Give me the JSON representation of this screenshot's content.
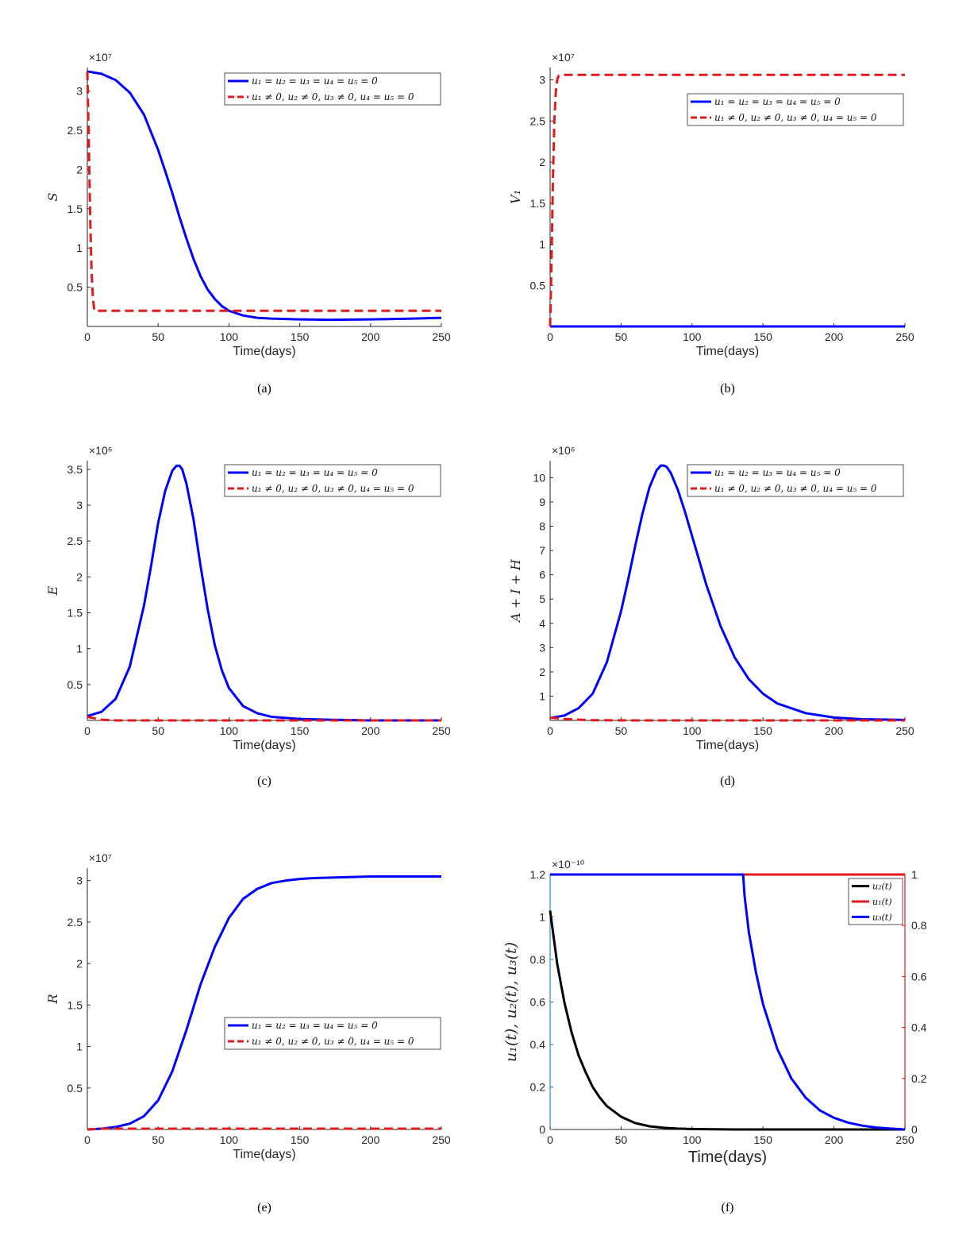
{
  "colors": {
    "blue": "#0000ff",
    "red": "#e31a1c",
    "black": "#000000",
    "left_axis": "#0072bd",
    "right_axis": "#d95319"
  },
  "chart_data": [
    {
      "id": "a",
      "type": "line",
      "panel_label": "(a)",
      "xlabel": "Time(days)",
      "ylabel": "S",
      "exponent_label": "×10⁷",
      "xlim": [
        0,
        250
      ],
      "ylim": [
        0.0,
        3.3
      ],
      "x_ticks": [
        0,
        50,
        100,
        150,
        200,
        250
      ],
      "x_tick_labels": [
        "0",
        "50",
        "100",
        "150",
        "200",
        "250"
      ],
      "y_ticks": [
        0.5,
        1,
        1.5,
        2,
        2.5,
        3
      ],
      "y_tick_labels": [
        "0.5",
        "1",
        "1.5",
        "2",
        "2.5",
        "3"
      ],
      "legend": {
        "position": "top-right",
        "entries": [
          "u₁ = u₂ = u₃ = u₄ = u₅ = 0",
          "u₁ ≠ 0,  u₂ ≠ 0,  u₃ ≠ 0,  u₄ = u₅ = 0"
        ]
      },
      "series": [
        {
          "color": "blue",
          "dash": false,
          "x": [
            0,
            10,
            20,
            30,
            40,
            50,
            55,
            60,
            65,
            70,
            75,
            80,
            85,
            90,
            95,
            100,
            110,
            120,
            130,
            150,
            170,
            200,
            230,
            250
          ],
          "y": [
            3.25,
            3.22,
            3.14,
            2.98,
            2.7,
            2.25,
            1.98,
            1.7,
            1.4,
            1.12,
            0.86,
            0.64,
            0.47,
            0.35,
            0.26,
            0.2,
            0.14,
            0.11,
            0.1,
            0.09,
            0.085,
            0.09,
            0.1,
            0.11
          ]
        },
        {
          "color": "red",
          "dash": true,
          "x": [
            0,
            1,
            2,
            3,
            4,
            5,
            8,
            20,
            100,
            250
          ],
          "y": [
            3.25,
            2.4,
            1.4,
            0.7,
            0.35,
            0.2,
            0.2,
            0.2,
            0.2,
            0.2
          ]
        }
      ]
    },
    {
      "id": "b",
      "type": "line",
      "panel_label": "(b)",
      "xlabel": "Time(days)",
      "ylabel": "V₁",
      "exponent_label": "×10⁷",
      "xlim": [
        0,
        250
      ],
      "ylim": [
        0.0,
        3.15
      ],
      "x_ticks": [
        0,
        50,
        100,
        150,
        200,
        250
      ],
      "x_tick_labels": [
        "0",
        "50",
        "100",
        "150",
        "200",
        "250"
      ],
      "y_ticks": [
        0.5,
        1,
        1.5,
        2,
        2.5,
        3
      ],
      "y_tick_labels": [
        "0.5",
        "1",
        "1.5",
        "2",
        "2.5",
        "3"
      ],
      "legend": {
        "position": "top-right",
        "entries": [
          "u₁ = u₂ = u₃ = u₄ = u₅ = 0",
          "u₁ ≠ 0,  u₂ ≠ 0,  u₃ ≠ 0,  u₄ = u₅ = 0"
        ]
      },
      "series": [
        {
          "color": "blue",
          "dash": false,
          "x": [
            0,
            250
          ],
          "y": [
            0.0,
            0.0
          ]
        },
        {
          "color": "red",
          "dash": true,
          "x": [
            0,
            1,
            2,
            3,
            4,
            5,
            6,
            10,
            50,
            250
          ],
          "y": [
            0.0,
            0.8,
            1.8,
            2.5,
            2.85,
            3.0,
            3.05,
            3.06,
            3.06,
            3.06
          ]
        }
      ]
    },
    {
      "id": "c",
      "type": "line",
      "panel_label": "(c)",
      "xlabel": "Time(days)",
      "ylabel": "E",
      "exponent_label": "×10⁶",
      "xlim": [
        0,
        250
      ],
      "ylim": [
        0.0,
        3.62
      ],
      "x_ticks": [
        0,
        50,
        100,
        150,
        200,
        250
      ],
      "x_tick_labels": [
        "0",
        "50",
        "100",
        "150",
        "200",
        "250"
      ],
      "y_ticks": [
        0.5,
        1,
        1.5,
        2,
        2.5,
        3,
        3.5
      ],
      "y_tick_labels": [
        "0.5",
        "1",
        "1.5",
        "2",
        "2.5",
        "3",
        "3.5"
      ],
      "legend": {
        "position": "top-right",
        "entries": [
          "u₁ = u₂ = u₃ = u₄ = u₅ = 0",
          "u₁ ≠ 0,  u₂ ≠ 0,  u₃ ≠ 0,  u₄ = u₅ = 0"
        ]
      },
      "series": [
        {
          "color": "blue",
          "dash": false,
          "x": [
            0,
            10,
            20,
            30,
            40,
            45,
            50,
            55,
            60,
            63,
            65,
            67,
            70,
            75,
            80,
            85,
            90,
            95,
            100,
            110,
            120,
            130,
            150,
            170,
            200,
            250
          ],
          "y": [
            0.06,
            0.12,
            0.3,
            0.75,
            1.6,
            2.15,
            2.75,
            3.2,
            3.48,
            3.55,
            3.55,
            3.5,
            3.3,
            2.8,
            2.15,
            1.55,
            1.05,
            0.7,
            0.45,
            0.2,
            0.1,
            0.05,
            0.02,
            0.01,
            0.0,
            0.0
          ]
        },
        {
          "color": "red",
          "dash": true,
          "x": [
            0,
            5,
            10,
            20,
            100,
            250
          ],
          "y": [
            0.05,
            0.03,
            0.01,
            0.0,
            0.0,
            0.0
          ]
        }
      ]
    },
    {
      "id": "d",
      "type": "line",
      "panel_label": "(d)",
      "xlabel": "Time(days)",
      "ylabel": "A + I + H",
      "exponent_label": "×10⁶",
      "xlim": [
        0,
        250
      ],
      "ylim": [
        0.0,
        10.7
      ],
      "x_ticks": [
        0,
        50,
        100,
        150,
        200,
        250
      ],
      "x_tick_labels": [
        "0",
        "50",
        "100",
        "150",
        "200",
        "250"
      ],
      "y_ticks": [
        1,
        2,
        3,
        4,
        5,
        6,
        7,
        8,
        9,
        10
      ],
      "y_tick_labels": [
        "1",
        "2",
        "3",
        "4",
        "5",
        "6",
        "7",
        "8",
        "9",
        "10"
      ],
      "legend": {
        "position": "top-right",
        "entries": [
          "u₁ = u₂ = u₃ = u₄ = u₅ = 0",
          "u₁ ≠ 0,  u₂ ≠ 0,  u₃ ≠ 0,  u₄ = u₅ = 0"
        ]
      },
      "series": [
        {
          "color": "blue",
          "dash": false,
          "x": [
            0,
            10,
            20,
            30,
            40,
            50,
            55,
            60,
            65,
            70,
            75,
            78,
            80,
            82,
            85,
            90,
            95,
            100,
            110,
            120,
            130,
            140,
            150,
            160,
            180,
            200,
            220,
            250
          ],
          "y": [
            0.1,
            0.2,
            0.5,
            1.1,
            2.4,
            4.5,
            5.8,
            7.2,
            8.5,
            9.6,
            10.3,
            10.5,
            10.5,
            10.45,
            10.2,
            9.5,
            8.6,
            7.6,
            5.6,
            3.9,
            2.6,
            1.7,
            1.1,
            0.7,
            0.3,
            0.12,
            0.05,
            0.02
          ]
        },
        {
          "color": "red",
          "dash": true,
          "x": [
            0,
            5,
            10,
            20,
            30,
            60,
            250
          ],
          "y": [
            0.12,
            0.09,
            0.06,
            0.03,
            0.01,
            0.0,
            0.0
          ]
        }
      ]
    },
    {
      "id": "e",
      "type": "line",
      "panel_label": "(e)",
      "xlabel": "Time(days)",
      "ylabel": "R",
      "exponent_label": "×10⁷",
      "xlim": [
        0,
        250
      ],
      "ylim": [
        0.0,
        3.15
      ],
      "x_ticks": [
        0,
        50,
        100,
        150,
        200,
        250
      ],
      "x_tick_labels": [
        "0",
        "50",
        "100",
        "150",
        "200",
        "250"
      ],
      "y_ticks": [
        0.5,
        1,
        1.5,
        2,
        2.5,
        3
      ],
      "y_tick_labels": [
        "0.5",
        "1",
        "1.5",
        "2",
        "2.5",
        "3"
      ],
      "legend": {
        "position": "bottom-right",
        "entries": [
          "u₁ = u₂ = u₃ = u₄ = u₅ = 0",
          "u₁ ≠ 0,  u₂ ≠ 0,  u₃ ≠ 0,  u₄ = u₅ = 0"
        ]
      },
      "series": [
        {
          "color": "blue",
          "dash": false,
          "x": [
            0,
            10,
            20,
            30,
            40,
            50,
            60,
            70,
            80,
            90,
            100,
            110,
            120,
            130,
            140,
            150,
            160,
            180,
            200,
            250
          ],
          "y": [
            0.0,
            0.01,
            0.03,
            0.07,
            0.16,
            0.35,
            0.7,
            1.2,
            1.75,
            2.2,
            2.55,
            2.78,
            2.9,
            2.97,
            3.0,
            3.02,
            3.03,
            3.04,
            3.05,
            3.05
          ]
        },
        {
          "color": "red",
          "dash": true,
          "x": [
            0,
            10,
            250
          ],
          "y": [
            0.0,
            0.01,
            0.01
          ]
        }
      ]
    },
    {
      "id": "f",
      "type": "line",
      "panel_label": "(f)",
      "xlabel": "Time(days)",
      "ylabel": "u₁(t), u₂(t), u₃(t)",
      "exponent_label": "×10⁻¹⁰",
      "xlim": [
        0,
        250
      ],
      "ylim": [
        0,
        1.2
      ],
      "y2lim": [
        0,
        1
      ],
      "x_ticks": [
        0,
        50,
        100,
        150,
        200,
        250
      ],
      "x_tick_labels": [
        "0",
        "50",
        "100",
        "150",
        "200",
        "250"
      ],
      "y_ticks": [
        0,
        0.2,
        0.4,
        0.6,
        0.8,
        1,
        1.2
      ],
      "y_tick_labels": [
        "0",
        "0.2",
        "0.4",
        "0.6",
        "0.8",
        "1",
        "1.2"
      ],
      "y2_ticks": [
        0,
        0.2,
        0.4,
        0.6,
        0.8,
        1
      ],
      "y2_tick_labels": [
        "0",
        "0.2",
        "0.4",
        "0.6",
        "0.8",
        "1"
      ],
      "legend": {
        "position": "top-right",
        "entries": [
          "u₂(t)",
          "u₁(t)",
          "u₃(t)"
        ]
      },
      "series": [
        {
          "name": "u₂(t)",
          "color": "black",
          "dash": false,
          "axis": "left",
          "x": [
            0,
            5,
            10,
            15,
            20,
            25,
            30,
            35,
            40,
            50,
            60,
            70,
            80,
            90,
            100,
            130,
            250
          ],
          "y": [
            1.03,
            0.78,
            0.6,
            0.46,
            0.35,
            0.27,
            0.2,
            0.15,
            0.11,
            0.06,
            0.03,
            0.015,
            0.008,
            0.004,
            0.002,
            0.0,
            0.0
          ]
        },
        {
          "name": "u₁(t)",
          "color": "red",
          "dash": false,
          "axis": "right",
          "x": [
            0,
            250
          ],
          "y": [
            1,
            1
          ]
        },
        {
          "name": "u₃(t)",
          "color": "blue",
          "dash": false,
          "axis": "left",
          "x": [
            0,
            136,
            137,
            140,
            145,
            150,
            160,
            170,
            180,
            190,
            200,
            210,
            220,
            230,
            240,
            250
          ],
          "y": [
            1.2,
            1.2,
            1.1,
            0.93,
            0.74,
            0.59,
            0.38,
            0.24,
            0.15,
            0.09,
            0.055,
            0.032,
            0.018,
            0.009,
            0.004,
            0.0
          ]
        }
      ]
    }
  ]
}
